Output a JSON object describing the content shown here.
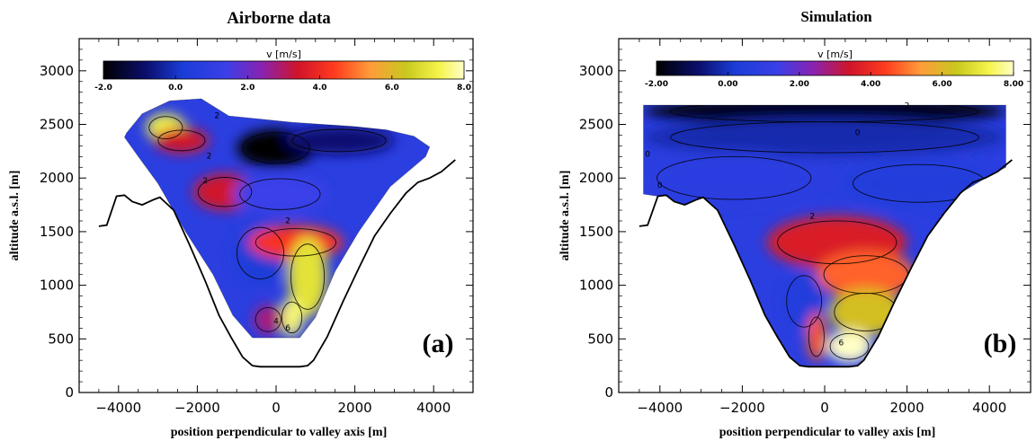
{
  "chart_data": [
    {
      "type": "contour",
      "title": "Airborne data",
      "xlabel": "position perpendicular to valley axis [m]",
      "ylabel": "altitude a.s.l. [m]",
      "xlim": [
        -5000,
        5000
      ],
      "ylim": [
        0,
        3300
      ],
      "xticks": [
        -4000,
        -2000,
        0,
        2000,
        4000
      ],
      "xtick_labels": [
        "−4000",
        "−2000",
        "0",
        "2000",
        "4000"
      ],
      "yticks": [
        0,
        500,
        1000,
        1500,
        2000,
        2500,
        3000
      ],
      "ytick_labels": [
        "0",
        "500",
        "1000",
        "1500",
        "2000",
        "2500",
        "3000"
      ],
      "colorbar": {
        "label": "v [m/s]",
        "range": [
          -2.0,
          8.0
        ],
        "ticks": [
          -2.0,
          0.0,
          2.0,
          4.0,
          6.0,
          8.0
        ],
        "tick_labels": [
          "-2.0",
          "0.0",
          "2.0",
          "4.0",
          "6.0",
          "8.0"
        ]
      },
      "contour_labels": [
        {
          "x": -1500,
          "y": 2560,
          "text": "2"
        },
        {
          "x": -1700,
          "y": 2180,
          "text": "2"
        },
        {
          "x": -1800,
          "y": 1950,
          "text": "2"
        },
        {
          "x": 300,
          "y": 1580,
          "text": "2"
        },
        {
          "x": 300,
          "y": 580,
          "text": "6"
        },
        {
          "x": 0,
          "y": 640,
          "text": "4"
        }
      ],
      "panel_label": "(a)",
      "terrain": [
        [
          -4500,
          1550
        ],
        [
          -4300,
          1560
        ],
        [
          -4050,
          1830
        ],
        [
          -3850,
          1840
        ],
        [
          -3650,
          1780
        ],
        [
          -3400,
          1750
        ],
        [
          -3100,
          1800
        ],
        [
          -2950,
          1820
        ],
        [
          -2600,
          1700
        ],
        [
          -2200,
          1380
        ],
        [
          -1800,
          1040
        ],
        [
          -1450,
          720
        ],
        [
          -1150,
          520
        ],
        [
          -850,
          330
        ],
        [
          -600,
          250
        ],
        [
          -400,
          240
        ],
        [
          600,
          240
        ],
        [
          800,
          250
        ],
        [
          950,
          300
        ],
        [
          1300,
          520
        ],
        [
          1700,
          850
        ],
        [
          2100,
          1160
        ],
        [
          2500,
          1460
        ],
        [
          2900,
          1670
        ],
        [
          3300,
          1860
        ],
        [
          3600,
          1960
        ],
        [
          3900,
          2000
        ],
        [
          4200,
          2060
        ],
        [
          4550,
          2170
        ]
      ],
      "data_domain": [
        [
          -3800,
          2420
        ],
        [
          -3400,
          2600
        ],
        [
          -2700,
          2720
        ],
        [
          -1900,
          2740
        ],
        [
          -1200,
          2580
        ],
        [
          -400,
          2550
        ],
        [
          400,
          2520
        ],
        [
          1200,
          2500
        ],
        [
          2000,
          2480
        ],
        [
          2800,
          2450
        ],
        [
          3500,
          2390
        ],
        [
          3900,
          2290
        ],
        [
          3800,
          2200
        ],
        [
          2900,
          1920
        ],
        [
          2100,
          1500
        ],
        [
          1500,
          1130
        ],
        [
          1000,
          700
        ],
        [
          600,
          510
        ],
        [
          -600,
          510
        ],
        [
          -1100,
          720
        ],
        [
          -1600,
          1100
        ],
        [
          -2300,
          1500
        ],
        [
          -3000,
          1950
        ],
        [
          -3500,
          2200
        ],
        [
          -3850,
          2380
        ]
      ],
      "field_blobs": [
        {
          "x": -2800,
          "y": 2470,
          "rx": 500,
          "ry": 130,
          "v": 7.2
        },
        {
          "x": -2400,
          "y": 2350,
          "rx": 700,
          "ry": 120,
          "v": 3.2
        },
        {
          "x": 0,
          "y": 2280,
          "rx": 1000,
          "ry": 180,
          "v": -2.0
        },
        {
          "x": 1600,
          "y": 2350,
          "rx": 1400,
          "ry": 130,
          "v": -1.0
        },
        {
          "x": -1300,
          "y": 1870,
          "rx": 800,
          "ry": 170,
          "v": 3.2
        },
        {
          "x": 100,
          "y": 1850,
          "rx": 1200,
          "ry": 180,
          "v": 1.2
        },
        {
          "x": -400,
          "y": 1300,
          "rx": 700,
          "ry": 300,
          "v": 0.0
        },
        {
          "x": 500,
          "y": 1400,
          "rx": 1200,
          "ry": 160,
          "v": 4.0
        },
        {
          "x": 800,
          "y": 1080,
          "rx": 500,
          "ry": 380,
          "v": 6.8
        },
        {
          "x": 400,
          "y": 700,
          "rx": 300,
          "ry": 180,
          "v": 7.5
        },
        {
          "x": -200,
          "y": 680,
          "rx": 380,
          "ry": 140,
          "v": 2.6
        }
      ]
    },
    {
      "type": "contour",
      "title": "Simulation",
      "xlabel": "position perpendicular to valley axis [m]",
      "ylabel": "altitude a.s.l. [m]",
      "xlim": [
        -5000,
        5000
      ],
      "ylim": [
        0,
        3300
      ],
      "xticks": [
        -4000,
        -2000,
        0,
        2000,
        4000
      ],
      "xtick_labels": [
        "−4000",
        "−2000",
        "0",
        "2000",
        "4000"
      ],
      "yticks": [
        0,
        500,
        1000,
        1500,
        2000,
        2500,
        3000
      ],
      "ytick_labels": [
        "0",
        "500",
        "1000",
        "1500",
        "2000",
        "2500",
        "3000"
      ],
      "colorbar": {
        "label": "v [m/s]",
        "range": [
          -2.0,
          8.0
        ],
        "ticks": [
          -2.0,
          0.0,
          2.0,
          4.0,
          6.0,
          8.0
        ],
        "tick_labels": [
          "-2.00",
          "0.00",
          "2.00",
          "4.00",
          "6.00",
          "8.00"
        ]
      },
      "contour_labels": [
        {
          "x": 800,
          "y": 2400,
          "text": "0"
        },
        {
          "x": -4300,
          "y": 2200,
          "text": "0"
        },
        {
          "x": -4000,
          "y": 1910,
          "text": "0"
        },
        {
          "x": 2000,
          "y": 2650,
          "text": "2"
        },
        {
          "x": -300,
          "y": 1620,
          "text": "2"
        },
        {
          "x": 400,
          "y": 440,
          "text": "6"
        }
      ],
      "panel_label": "(b)",
      "terrain": [
        [
          -4500,
          1550
        ],
        [
          -4300,
          1560
        ],
        [
          -4050,
          1830
        ],
        [
          -3850,
          1840
        ],
        [
          -3650,
          1780
        ],
        [
          -3400,
          1750
        ],
        [
          -3100,
          1800
        ],
        [
          -2950,
          1820
        ],
        [
          -2600,
          1700
        ],
        [
          -2200,
          1380
        ],
        [
          -1800,
          1040
        ],
        [
          -1450,
          720
        ],
        [
          -1150,
          520
        ],
        [
          -850,
          330
        ],
        [
          -600,
          250
        ],
        [
          -400,
          240
        ],
        [
          600,
          240
        ],
        [
          800,
          250
        ],
        [
          950,
          300
        ],
        [
          1300,
          520
        ],
        [
          1700,
          850
        ],
        [
          2100,
          1160
        ],
        [
          2500,
          1460
        ],
        [
          2900,
          1670
        ],
        [
          3300,
          1860
        ],
        [
          3600,
          1960
        ],
        [
          3900,
          2000
        ],
        [
          4200,
          2060
        ],
        [
          4550,
          2170
        ]
      ],
      "data_domain": [
        [
          -4400,
          2680
        ],
        [
          4400,
          2680
        ],
        [
          4400,
          2100
        ],
        [
          3900,
          2000
        ],
        [
          3300,
          1860
        ],
        [
          2900,
          1670
        ],
        [
          2500,
          1460
        ],
        [
          2100,
          1160
        ],
        [
          1700,
          850
        ],
        [
          1300,
          520
        ],
        [
          950,
          300
        ],
        [
          800,
          250
        ],
        [
          600,
          240
        ],
        [
          -400,
          240
        ],
        [
          -600,
          250
        ],
        [
          -850,
          330
        ],
        [
          -1150,
          520
        ],
        [
          -1450,
          720
        ],
        [
          -1800,
          1040
        ],
        [
          -2200,
          1380
        ],
        [
          -2600,
          1700
        ],
        [
          -2950,
          1820
        ],
        [
          -3100,
          1800
        ],
        [
          -3400,
          1750
        ],
        [
          -3650,
          1780
        ],
        [
          -3850,
          1840
        ],
        [
          -4050,
          1830
        ],
        [
          -4400,
          1850
        ]
      ],
      "field_blobs": [
        {
          "x": 0,
          "y": 2620,
          "rx": 4400,
          "ry": 120,
          "v": -2.0
        },
        {
          "x": 0,
          "y": 2380,
          "rx": 4400,
          "ry": 180,
          "v": -0.4
        },
        {
          "x": -2200,
          "y": 2000,
          "rx": 2200,
          "ry": 250,
          "v": 0.6
        },
        {
          "x": 2300,
          "y": 1950,
          "rx": 1900,
          "ry": 220,
          "v": 0.2
        },
        {
          "x": 300,
          "y": 1400,
          "rx": 1700,
          "ry": 250,
          "v": 3.4
        },
        {
          "x": 1000,
          "y": 1100,
          "rx": 1200,
          "ry": 220,
          "v": 4.6
        },
        {
          "x": -500,
          "y": 850,
          "rx": 500,
          "ry": 300,
          "v": 0.2
        },
        {
          "x": 1000,
          "y": 750,
          "rx": 900,
          "ry": 220,
          "v": 6.0
        },
        {
          "x": 600,
          "y": 430,
          "rx": 550,
          "ry": 150,
          "v": 8.0
        },
        {
          "x": -200,
          "y": 520,
          "rx": 220,
          "ry": 230,
          "v": 4.5
        }
      ]
    }
  ]
}
